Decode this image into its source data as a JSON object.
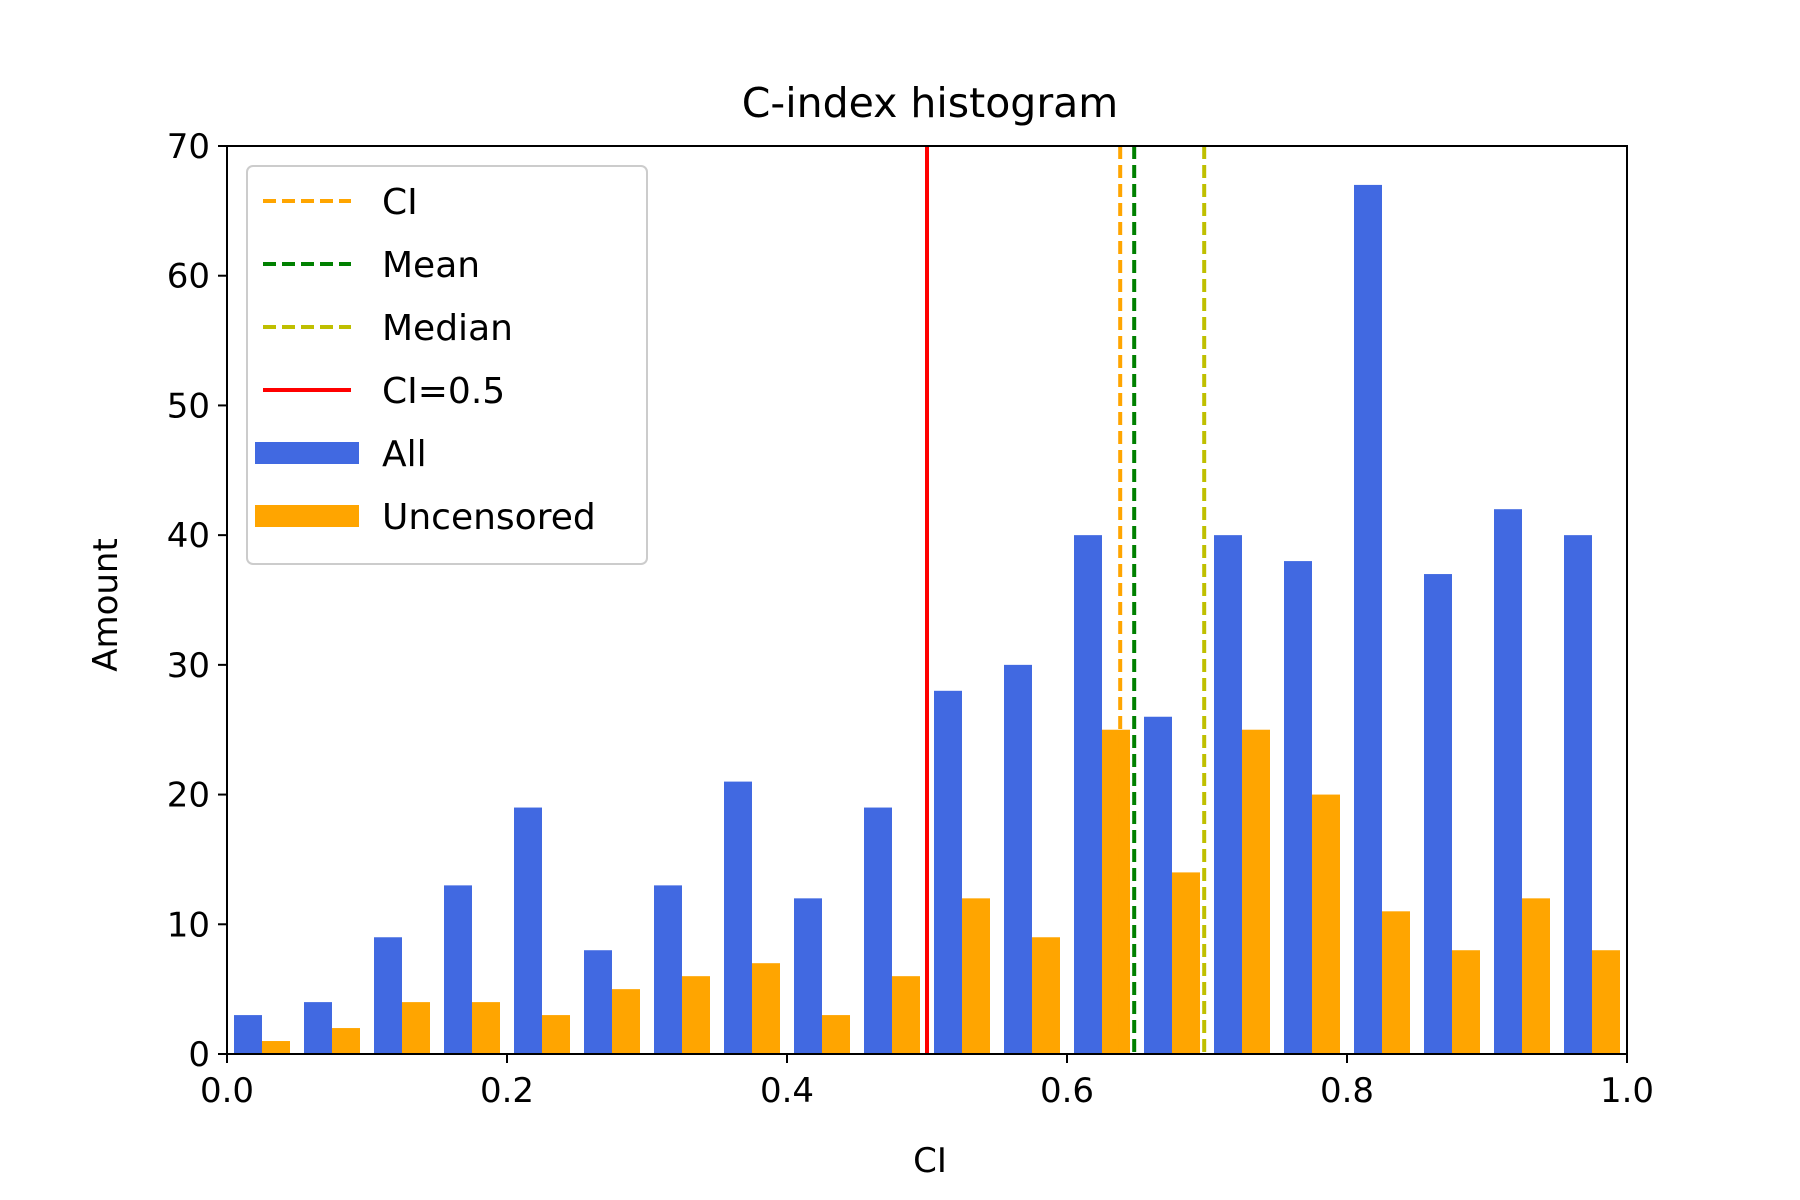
{
  "chart_data": {
    "type": "bar",
    "title": "C-index histogram",
    "xlabel": "CI",
    "ylabel": "Amount",
    "xlim": [
      0.0,
      1.0
    ],
    "ylim": [
      0,
      70
    ],
    "xticks": [
      "0.0",
      "0.2",
      "0.4",
      "0.6",
      "0.8",
      "1.0"
    ],
    "yticks": [
      "0",
      "10",
      "20",
      "30",
      "40",
      "50",
      "60",
      "70"
    ],
    "bins": 20,
    "bin_width": 0.05,
    "grid": false,
    "legend_position": "top-left",
    "series": [
      {
        "name": "All",
        "color": "#4169e1",
        "values": [
          3,
          4,
          9,
          13,
          19,
          8,
          13,
          21,
          12,
          19,
          28,
          30,
          40,
          26,
          40,
          38,
          67,
          37,
          42,
          40
        ]
      },
      {
        "name": "Uncensored",
        "color": "#ffa500",
        "values": [
          1,
          2,
          4,
          4,
          3,
          5,
          6,
          7,
          3,
          6,
          12,
          9,
          25,
          14,
          25,
          20,
          11,
          8,
          12,
          8
        ]
      }
    ],
    "vlines": [
      {
        "name": "CI",
        "x": 0.638,
        "color": "#ffa500",
        "style": "dashed"
      },
      {
        "name": "Mean",
        "x": 0.648,
        "color": "#008000",
        "style": "dashed"
      },
      {
        "name": "Median",
        "x": 0.698,
        "color": "#bfbf00",
        "style": "dashed"
      },
      {
        "name": "CI=0.5",
        "x": 0.5,
        "color": "#ff0000",
        "style": "solid"
      }
    ]
  }
}
